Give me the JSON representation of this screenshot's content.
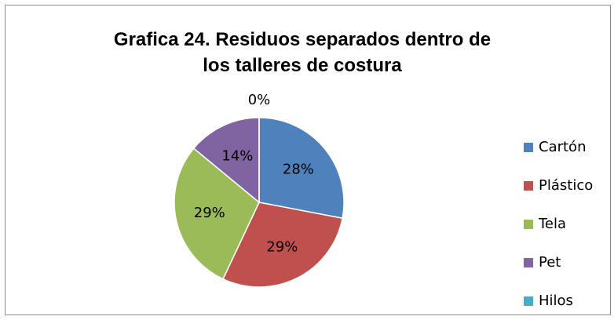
{
  "chart_data": {
    "type": "pie",
    "title": "Grafica 24. Residuos separados dentro de los talleres de costura",
    "categories": [
      "Cartón",
      "Plástico",
      "Tela",
      "Pet",
      "Hilos"
    ],
    "values": [
      28,
      29,
      29,
      14,
      0
    ],
    "value_labels": [
      "28%",
      "29%",
      "29%",
      "14%",
      "0%"
    ],
    "colors": [
      "#4f81bd",
      "#c0504d",
      "#9bbb59",
      "#8064a2",
      "#4bacc6"
    ],
    "legend": "right"
  }
}
